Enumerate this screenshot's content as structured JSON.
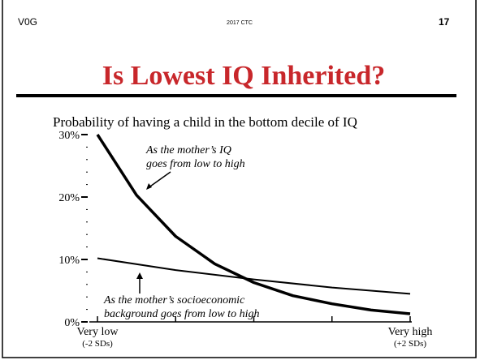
{
  "header": {
    "left": "V0G",
    "center": "2017 CTC",
    "right": "17"
  },
  "title": "Is Lowest IQ Inherited?",
  "chart_data": {
    "type": "line",
    "title": "Probability of having a child in the bottom decile of IQ",
    "xlim": [
      -2,
      2
    ],
    "xticks": [
      {
        "value": -2,
        "label": "Very low",
        "sublabel": "(-2 SDs)"
      },
      {
        "value": -1,
        "label": null
      },
      {
        "value": 0,
        "label": null
      },
      {
        "value": 1,
        "label": null
      },
      {
        "value": 2,
        "label": "Very high",
        "sublabel": "(+2 SDs)"
      }
    ],
    "ylim": [
      0,
      30
    ],
    "yticks": [
      {
        "value": 0,
        "label": "0%"
      },
      {
        "value": 2,
        "label": null
      },
      {
        "value": 4,
        "label": null
      },
      {
        "value": 6,
        "label": null
      },
      {
        "value": 8,
        "label": null
      },
      {
        "value": 10,
        "label": "10%"
      },
      {
        "value": 12,
        "label": null
      },
      {
        "value": 14,
        "label": null
      },
      {
        "value": 16,
        "label": null
      },
      {
        "value": 18,
        "label": null
      },
      {
        "value": 20,
        "label": "20%"
      },
      {
        "value": 22,
        "label": null
      },
      {
        "value": 24,
        "label": null
      },
      {
        "value": 26,
        "label": null
      },
      {
        "value": 28,
        "label": null
      },
      {
        "value": 30,
        "label": "30%"
      }
    ],
    "series": [
      {
        "name": "As the mother's IQ goes from low to high",
        "color": "#000000",
        "width": 3.5,
        "x": [
          -2,
          -1.5,
          -1,
          -0.5,
          0,
          0.5,
          1,
          1.5,
          2
        ],
        "values": [
          30,
          20.3,
          13.7,
          9.3,
          6.3,
          4.2,
          2.9,
          1.9,
          1.3
        ]
      },
      {
        "name": "As the mother's socioeconomic background goes from low to high",
        "color": "#000000",
        "width": 2,
        "x": [
          -2,
          -1,
          0,
          1,
          2
        ],
        "values": [
          10.2,
          8.3,
          6.8,
          5.5,
          4.5
        ]
      }
    ],
    "annotations": [
      {
        "lines": [
          "As the mother’s IQ",
          "goes from low to high"
        ]
      },
      {
        "lines": [
          "As the mother’s socioeconomic",
          "background goes from low to high"
        ]
      }
    ]
  }
}
